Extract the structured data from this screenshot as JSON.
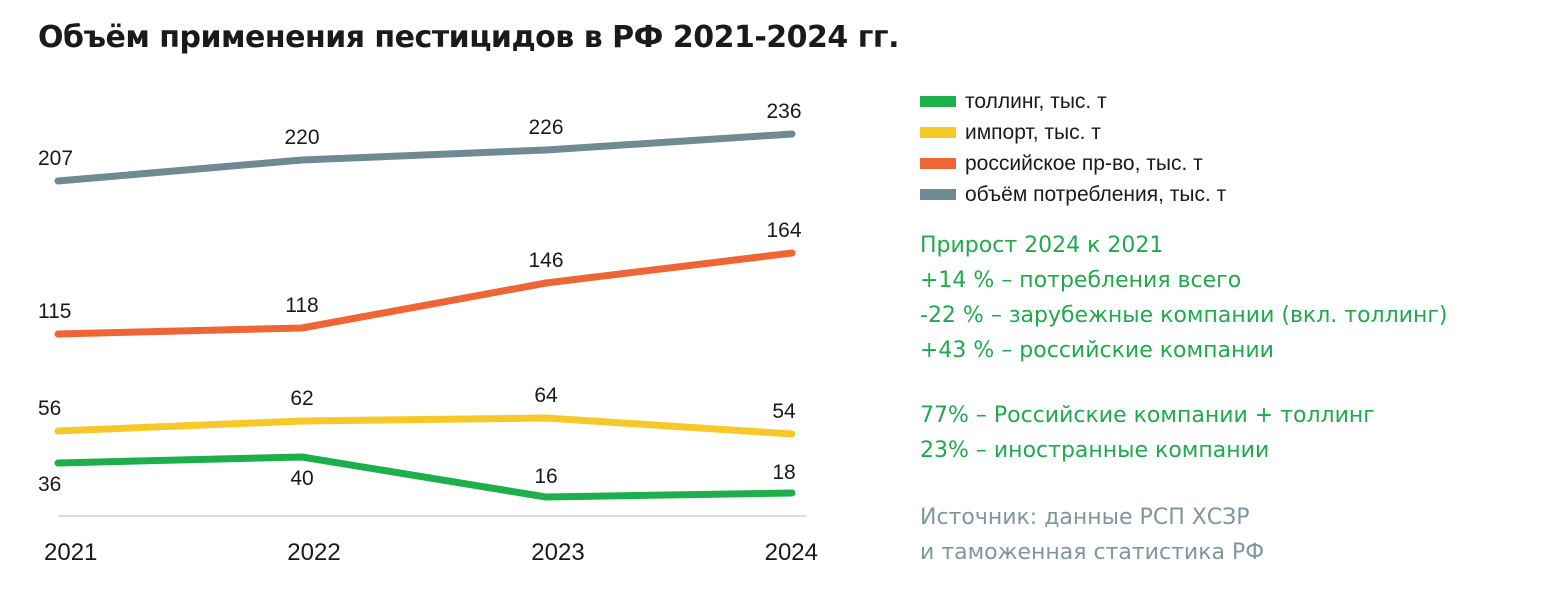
{
  "title": "Объём применения пестицидов в РФ  2021-2024 гг.",
  "chart_data": {
    "type": "line",
    "title": "Объём применения пестицидов в РФ  2021-2024 гг.",
    "x": [
      "2021",
      "2022",
      "2023",
      "2024"
    ],
    "series": [
      {
        "name": "толлинг, тыс. т",
        "color": "#1db04a",
        "values": [
          36,
          40,
          16,
          18
        ],
        "label_pos": "below-above"
      },
      {
        "name": "импорт, тыс. т",
        "color": "#f7c928",
        "values": [
          56,
          62,
          64,
          54
        ],
        "label_pos": "above"
      },
      {
        "name": "российское пр-во, тыс. т",
        "color": "#ef6535",
        "values": [
          115,
          118,
          146,
          164
        ],
        "label_pos": "above"
      },
      {
        "name": "объём потребления, тыс. т",
        "color": "#6f8a93",
        "values": [
          207,
          220,
          226,
          236
        ],
        "label_pos": "above"
      }
    ],
    "xlabel": "",
    "ylabel": "",
    "grid": false,
    "legend_position": "top-right"
  },
  "legend": [
    {
      "label": "толлинг, тыс. т",
      "color": "#1db04a"
    },
    {
      "label": "импорт, тыс. т",
      "color": "#f7c928"
    },
    {
      "label": "российское пр-во, тыс. т",
      "color": "#ef6535"
    },
    {
      "label": "объём потребления, тыс. т",
      "color": "#6f8a93"
    }
  ],
  "notes": {
    "growth_title": "Прирост 2024 к 2021",
    "growth_total": "+14 % – потребления всего",
    "growth_foreign": "-22 % – зарубежные компании (вкл. толлинг)",
    "growth_russian": "+43 % – российские компании",
    "share_russian": "77% – Российские компании + толлинг",
    "share_foreign": "23% – иностранные компании"
  },
  "source": {
    "line1": "Источник: данные РСП ХСЗР",
    "line2": "и таможенная статистика РФ"
  }
}
